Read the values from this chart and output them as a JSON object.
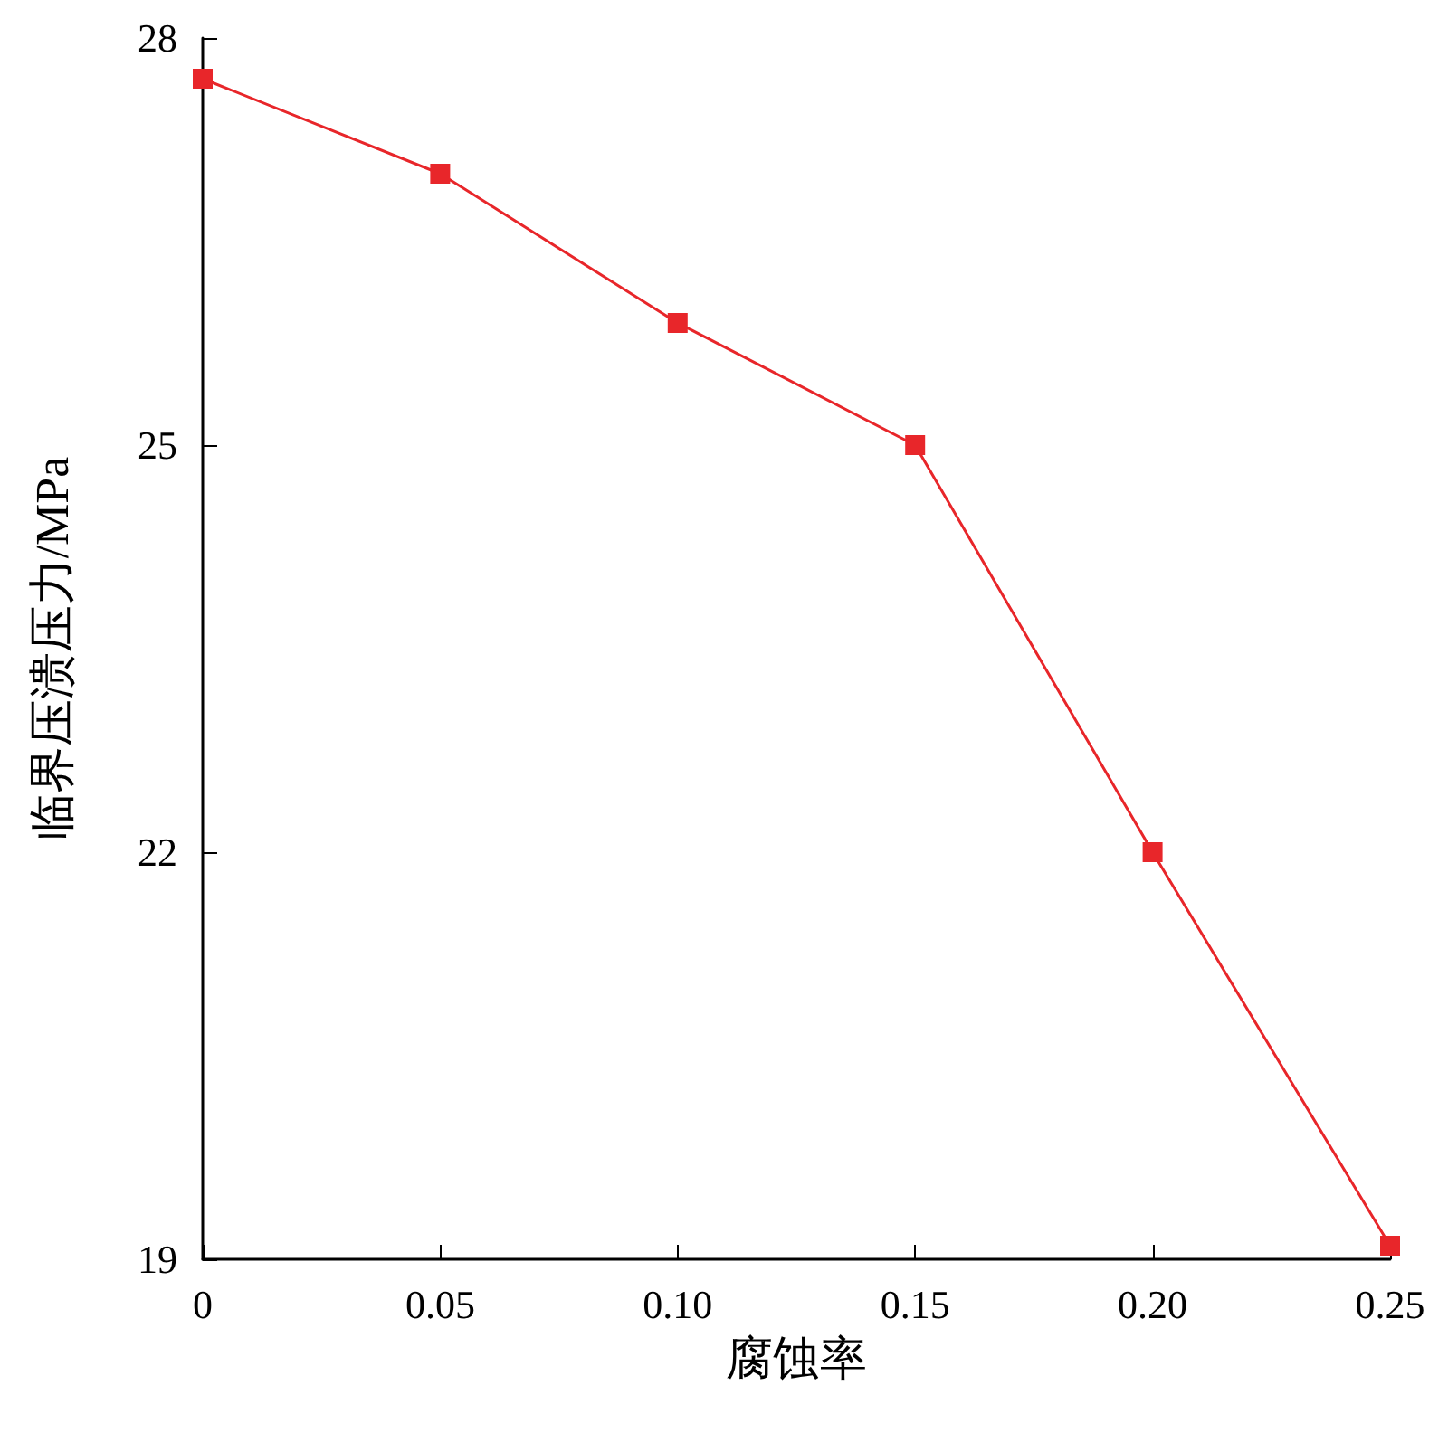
{
  "chart_data": {
    "type": "line",
    "xlabel": "腐蚀率",
    "ylabel": "临界压溃压力/MPa",
    "x": [
      0,
      0.05,
      0.1,
      0.15,
      0.2,
      0.25
    ],
    "series": [
      {
        "color": "#e8262a",
        "values": [
          27.7,
          27.0,
          25.9,
          25.0,
          22.0,
          19.1
        ]
      }
    ],
    "xlim": [
      0,
      0.25
    ],
    "xticks": [
      0,
      {
        "value": 0.05,
        "label": "0.05"
      },
      {
        "value": 0.1,
        "label": "0.10"
      },
      {
        "value": 0.15,
        "label": "0.15"
      },
      {
        "value": 0.2,
        "label": "0.20"
      },
      {
        "value": 0.25,
        "label": "0.25"
      }
    ],
    "ylim": [
      19,
      28
    ],
    "yticks": [
      19,
      22,
      25,
      28
    ],
    "grid": false,
    "marker": "square",
    "line_style": "solid"
  }
}
